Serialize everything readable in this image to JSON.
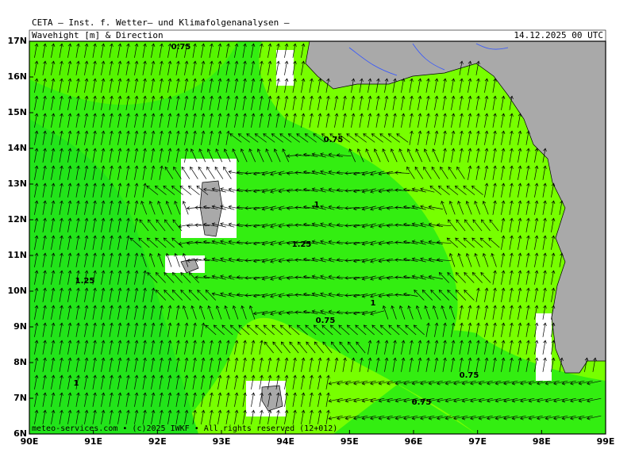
{
  "header": {
    "institute": "CETA – Inst. f. Wetter– und Klimafolgenanalysen –",
    "product": "Wavehight [m] & Direction",
    "valid_time": "14.12.2025 00 UTC"
  },
  "map": {
    "lat_labels": [
      "6N",
      "7N",
      "8N",
      "9N",
      "10N",
      "11N",
      "12N",
      "13N",
      "14N",
      "15N",
      "16N",
      "17N"
    ],
    "lon_labels": [
      "90E",
      "91E",
      "92E",
      "93E",
      "94E",
      "95E",
      "96E",
      "97E",
      "98E",
      "99E"
    ],
    "contour_labels": [
      "0.75",
      "0.75",
      "1",
      "1.25",
      "1.25",
      "1",
      "0.75",
      "1",
      "0.75",
      "0.75"
    ]
  },
  "footer": "meteo-services.com • (c)2025 IWKF • All rights reserved (12+012)"
}
